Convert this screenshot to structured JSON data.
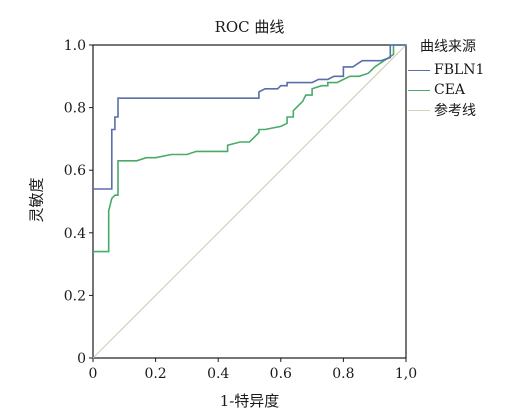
{
  "chart_data": {
    "type": "line",
    "title": "ROC 曲线",
    "xlabel": "1-特异度",
    "ylabel": "灵敏度",
    "xlim": [
      0,
      1
    ],
    "ylim": [
      0,
      1
    ],
    "x_ticks": [
      {
        "value": 0,
        "label": "0"
      },
      {
        "value": 0.2,
        "label": "0.2"
      },
      {
        "value": 0.4,
        "label": "0.4"
      },
      {
        "value": 0.6,
        "label": "0.6"
      },
      {
        "value": 0.8,
        "label": "0.8"
      },
      {
        "value": 1.0,
        "label": "1,0"
      }
    ],
    "y_ticks": [
      {
        "value": 0,
        "label": "0"
      },
      {
        "value": 0.2,
        "label": "0.2"
      },
      {
        "value": 0.4,
        "label": "0.4"
      },
      {
        "value": 0.6,
        "label": "0.6"
      },
      {
        "value": 0.8,
        "label": "0.8"
      },
      {
        "value": 1.0,
        "label": "1.0"
      }
    ],
    "legend_title": "曲线来源",
    "legend_position": "right",
    "grid": false,
    "series": [
      {
        "name": "FBLN1",
        "color": "#5a6fa8",
        "step": true,
        "x": [
          0,
          0.06,
          0.06,
          0.07,
          0.07,
          0.08,
          0.08,
          0.08,
          0.53,
          0.53,
          0.55,
          0.59,
          0.6,
          0.62,
          0.62,
          0.65,
          0.7,
          0.72,
          0.75,
          0.77,
          0.8,
          0.8,
          0.83,
          0.86,
          0.92,
          0.95,
          0.95,
          1.0
        ],
        "y": [
          0.54,
          0.54,
          0.73,
          0.73,
          0.77,
          0.77,
          0.82,
          0.83,
          0.83,
          0.85,
          0.86,
          0.86,
          0.87,
          0.87,
          0.88,
          0.88,
          0.88,
          0.89,
          0.89,
          0.9,
          0.9,
          0.93,
          0.93,
          0.95,
          0.95,
          0.96,
          1.0,
          1.0
        ]
      },
      {
        "name": "CEA",
        "color": "#4aaa6a",
        "step": true,
        "x": [
          0,
          0.05,
          0.05,
          0.06,
          0.07,
          0.08,
          0.08,
          0.14,
          0.17,
          0.18,
          0.2,
          0.25,
          0.27,
          0.3,
          0.33,
          0.37,
          0.4,
          0.43,
          0.43,
          0.47,
          0.5,
          0.53,
          0.53,
          0.55,
          0.6,
          0.62,
          0.62,
          0.64,
          0.64,
          0.67,
          0.68,
          0.7,
          0.7,
          0.73,
          0.75,
          0.75,
          0.78,
          0.82,
          0.85,
          0.88,
          0.9,
          0.93,
          0.96,
          0.96,
          1.0
        ],
        "y": [
          0.34,
          0.34,
          0.47,
          0.51,
          0.52,
          0.52,
          0.63,
          0.63,
          0.64,
          0.64,
          0.64,
          0.65,
          0.65,
          0.65,
          0.66,
          0.66,
          0.66,
          0.66,
          0.68,
          0.69,
          0.69,
          0.72,
          0.73,
          0.73,
          0.74,
          0.75,
          0.77,
          0.77,
          0.79,
          0.82,
          0.84,
          0.84,
          0.86,
          0.87,
          0.87,
          0.88,
          0.88,
          0.9,
          0.9,
          0.91,
          0.93,
          0.95,
          0.97,
          1.0,
          1.0
        ]
      },
      {
        "name": "参考线",
        "color": "#d6d2b8",
        "step": false,
        "x": [
          0,
          1
        ],
        "y": [
          0,
          1
        ]
      }
    ]
  }
}
